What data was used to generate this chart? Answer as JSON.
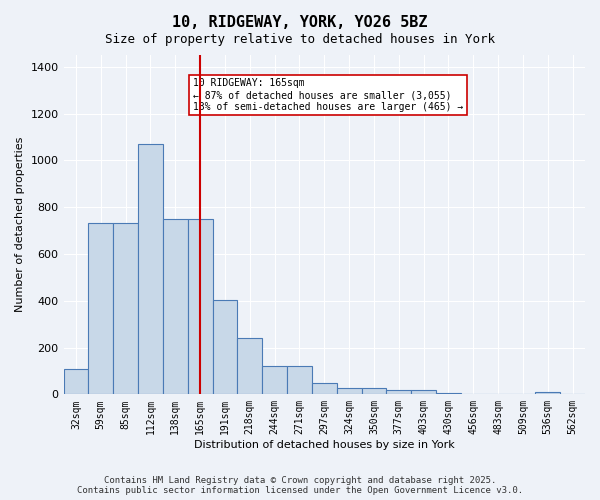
{
  "title": "10, RIDGEWAY, YORK, YO26 5BZ",
  "subtitle": "Size of property relative to detached houses in York",
  "xlabel": "Distribution of detached houses by size in York",
  "ylabel": "Number of detached properties",
  "categories": [
    "32sqm",
    "59sqm",
    "85sqm",
    "112sqm",
    "138sqm",
    "165sqm",
    "191sqm",
    "218sqm",
    "244sqm",
    "271sqm",
    "297sqm",
    "324sqm",
    "350sqm",
    "377sqm",
    "403sqm",
    "430sqm",
    "456sqm",
    "483sqm",
    "509sqm",
    "536sqm",
    "562sqm"
  ],
  "values": [
    108,
    730,
    730,
    1070,
    750,
    750,
    405,
    240,
    120,
    120,
    50,
    25,
    25,
    20,
    20,
    5,
    0,
    0,
    0,
    10,
    0
  ],
  "bar_color": "#c8d8e8",
  "bar_edge_color": "#4a7ab5",
  "highlight_index": 5,
  "vline_x": 5,
  "vline_color": "#cc0000",
  "annotation_text": "10 RIDGEWAY: 165sqm\n← 87% of detached houses are smaller (3,055)\n13% of semi-detached houses are larger (465) →",
  "annotation_box_color": "#ffffff",
  "annotation_box_edge": "#cc0000",
  "ylim": [
    0,
    1450
  ],
  "yticks": [
    0,
    200,
    400,
    600,
    800,
    1000,
    1200,
    1400
  ],
  "bg_color": "#eef2f8",
  "grid_color": "#ffffff",
  "footer": "Contains HM Land Registry data © Crown copyright and database right 2025.\nContains public sector information licensed under the Open Government Licence v3.0."
}
